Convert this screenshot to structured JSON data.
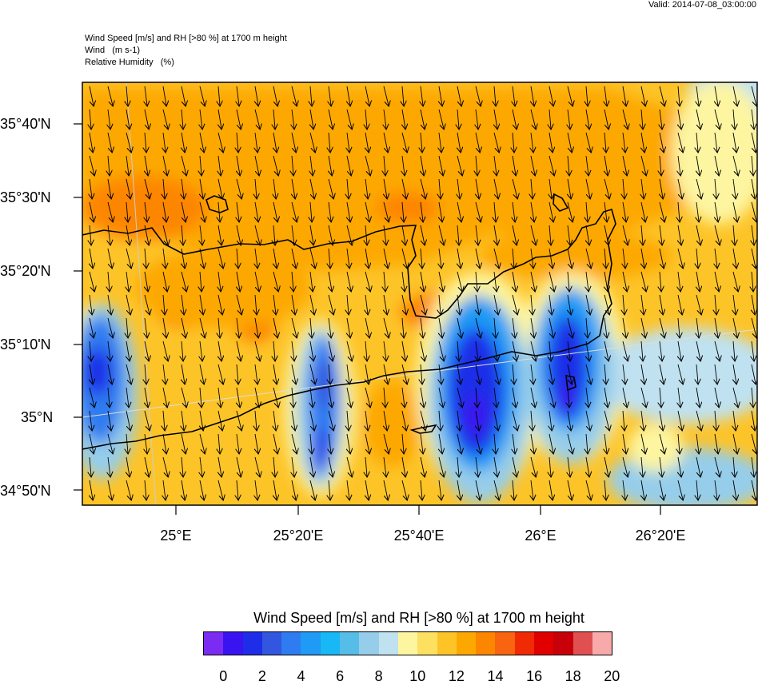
{
  "valid_label": "Valid: 2014-07-08_03:00:00",
  "header": {
    "line1": "Wind Speed [m/s] and RH [>80 %] at 1700 m height",
    "line2": "Wind   (m s-1)",
    "line3": "Relative Humidity   (%)"
  },
  "axes": {
    "lat_labels": [
      "35°40'N",
      "35°30'N",
      "35°20'N",
      "35°10'N",
      "35°N",
      "34°50'N"
    ],
    "lon_labels": [
      "25°E",
      "25°20'E",
      "25°40'E",
      "26°E",
      "26°20'E"
    ]
  },
  "colorbar": {
    "title": "Wind Speed [m/s] and RH [>80 %] at 1700 m height",
    "colors": [
      "#7b2cf2",
      "#3a14f0",
      "#1e2ee8",
      "#3356e0",
      "#2f7bf0",
      "#1f9af5",
      "#17b8f5",
      "#55bde8",
      "#96cdea",
      "#bfe1f0",
      "#fdf5a0",
      "#fde060",
      "#fdc428",
      "#fda800",
      "#fd8600",
      "#f86410",
      "#f02a05",
      "#e00000",
      "#c8000a",
      "#e05050",
      "#f8aaaa"
    ],
    "tick_labels": [
      "0",
      "2",
      "4",
      "6",
      "8",
      "10",
      "12",
      "14",
      "16",
      "18",
      "20"
    ]
  },
  "colors": {
    "frame": "#000000",
    "coast": "#000000"
  }
}
